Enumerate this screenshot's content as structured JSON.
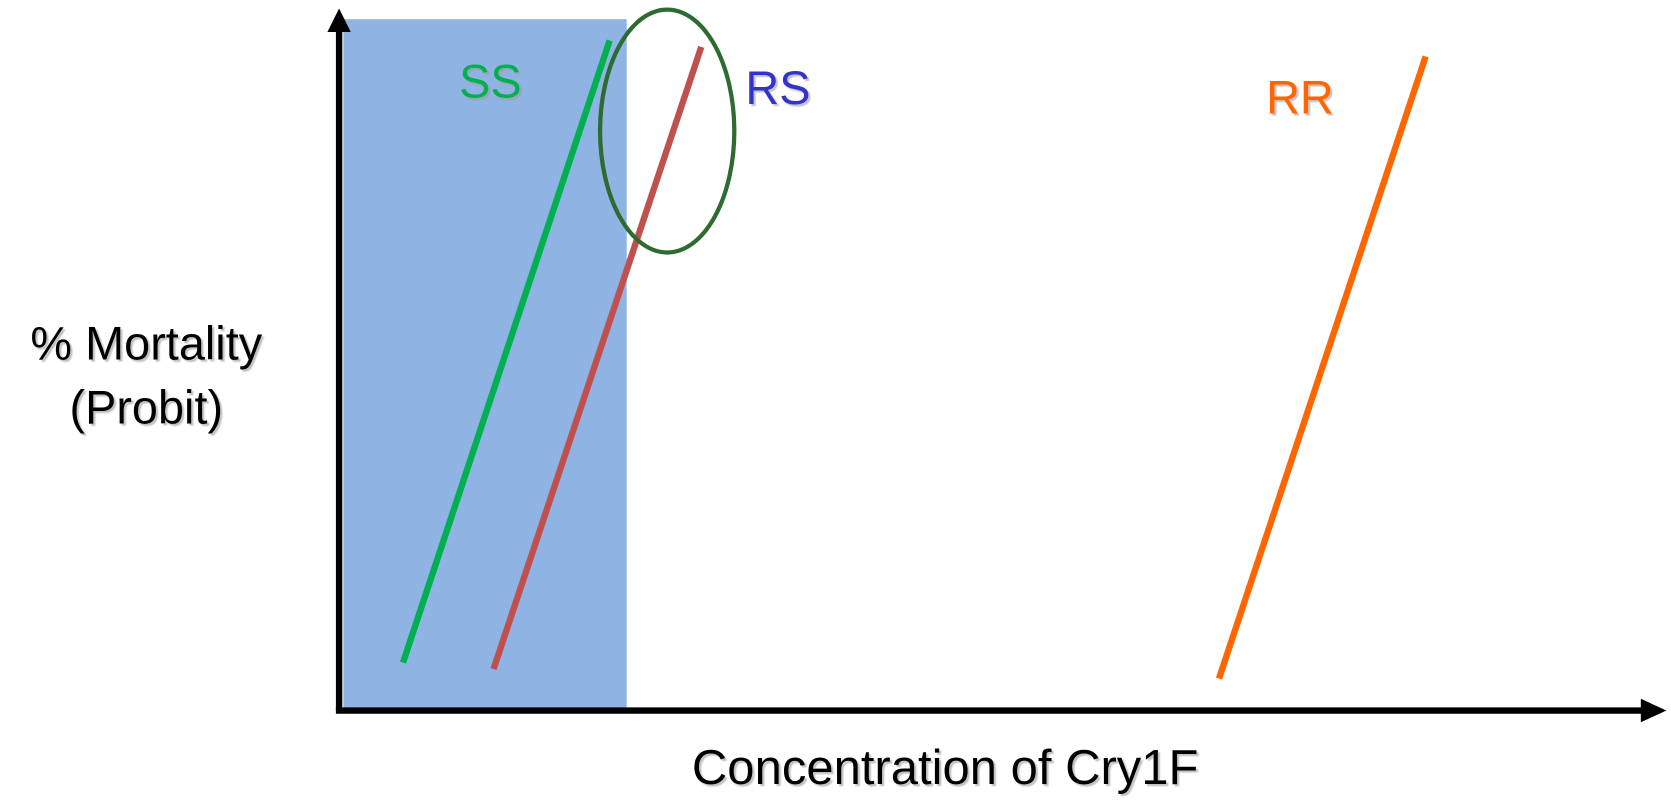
{
  "curves": [
    {
      "label": "SS"
    },
    {
      "label": "RS"
    },
    {
      "label": "RR"
    }
  ],
  "y_axis": {
    "label_lines": [
      "% Mortality",
      "(Probit)"
    ]
  },
  "x_axis": {
    "label": "Concentration of Cry1F"
  }
}
